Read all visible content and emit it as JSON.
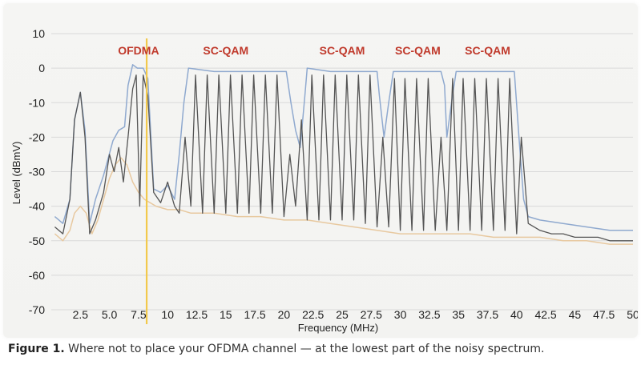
{
  "chart_data": {
    "type": "line",
    "title": "",
    "xlabel": "Frequency (MHz)",
    "ylabel": "Level (dBmV)",
    "xlim": [
      0,
      50
    ],
    "ylim": [
      -70,
      10
    ],
    "x_ticks": [
      2.5,
      5,
      7.5,
      10,
      12.5,
      15,
      17.5,
      20,
      22.5,
      25,
      27.5,
      30,
      32.5,
      35,
      37.5,
      40,
      42.5,
      45,
      47.5,
      50
    ],
    "x_tick_labels": [
      "2.5",
      "5.0",
      "7.5",
      "10",
      "12.5",
      "15",
      "17.5",
      "20",
      "22.5",
      "25",
      "27.5",
      "30",
      "32.5",
      "35",
      "37.5",
      "40",
      "42.5",
      "45",
      "47.5",
      "50"
    ],
    "y_ticks": [
      10,
      0,
      -10,
      -20,
      -30,
      -40,
      -50,
      -60,
      -70
    ],
    "y_tick_labels": [
      "10",
      "0",
      "-10",
      "-20",
      "-30",
      "-40",
      "-50",
      "-60",
      "-70"
    ],
    "grid": true,
    "annotations": [
      {
        "label": "OFDMA",
        "x": 7.5,
        "color": "#c0392b"
      },
      {
        "label": "SC-QAM",
        "x": 15,
        "color": "#c0392b"
      },
      {
        "label": "SC-QAM",
        "x": 25,
        "color": "#c0392b"
      },
      {
        "label": "SC-QAM",
        "x": 31.5,
        "color": "#c0392b"
      },
      {
        "label": "SC-QAM",
        "x": 37.5,
        "color": "#c0392b"
      }
    ],
    "marker_line": {
      "x": 8.2,
      "color": "#f2c94c"
    },
    "series": [
      {
        "color": "#8fa9cf",
        "x": [
          0.3,
          1.0,
          1.6,
          2.0,
          2.5,
          2.9,
          3.3,
          3.8,
          4.5,
          5.3,
          5.8,
          6.3,
          6.6,
          7.0,
          7.4,
          7.9,
          8.3,
          8.8,
          9.4,
          10.0,
          10.6,
          11.0,
          11.4,
          11.8,
          14.0,
          17.0,
          19.5,
          20.2,
          20.6,
          21.0,
          21.4,
          21.8,
          22.0,
          24.0,
          26.0,
          28.0,
          28.2,
          28.6,
          29.0,
          29.4,
          30.0,
          32.0,
          33.5,
          33.8,
          34.0,
          34.4,
          34.8,
          35.0,
          37.0,
          39.8,
          40.2,
          40.6,
          41.0,
          42.0,
          44.0,
          46.0,
          48.0,
          50.0
        ],
        "y": [
          -43,
          -45,
          -38,
          -15,
          -7,
          -18,
          -45,
          -38,
          -31,
          -21,
          -18,
          -17,
          -5,
          1,
          0,
          0,
          -3,
          -35,
          -36,
          -34,
          -38,
          -25,
          -10,
          0,
          -1,
          -1,
          -1,
          -1,
          -10,
          -18,
          -23,
          -8,
          0,
          -1,
          -1,
          -1,
          -8,
          -20,
          -10,
          -1,
          -1,
          -1,
          -1,
          -5,
          -20,
          -10,
          -1,
          -1,
          -1,
          -1,
          -20,
          -38,
          -43,
          -44,
          -45,
          -46,
          -47,
          -47
        ]
      },
      {
        "color": "#555555",
        "x": [
          0.3,
          1.0,
          1.6,
          2.0,
          2.5,
          2.9,
          3.3,
          3.8,
          4.5,
          5.0,
          5.4,
          5.8,
          6.2,
          6.6,
          7.0,
          7.3,
          7.6,
          7.9,
          8.3,
          8.8,
          9.4,
          10.0,
          10.6,
          11.0,
          11.5,
          12.0,
          12.4,
          13.0,
          13.4,
          14.0,
          14.4,
          15.0,
          15.4,
          16.0,
          16.4,
          17.0,
          17.4,
          18.0,
          18.4,
          19.0,
          19.4,
          20.0,
          20.5,
          21.0,
          21.5,
          22.0,
          22.4,
          23.0,
          23.4,
          24.0,
          24.4,
          25.0,
          25.4,
          26.0,
          26.4,
          27.0,
          27.4,
          28.0,
          28.5,
          29.0,
          29.5,
          30.0,
          30.4,
          31.0,
          31.4,
          32.0,
          32.4,
          33.0,
          33.5,
          34.0,
          34.5,
          35.0,
          35.4,
          36.0,
          36.4,
          37.0,
          37.4,
          38.0,
          38.4,
          39.0,
          39.4,
          40.0,
          40.4,
          41.0,
          42.0,
          43.0,
          44.0,
          45.0,
          46.0,
          47.0,
          48.0,
          49.0,
          50.0
        ],
        "y": [
          -46,
          -48,
          -38,
          -15,
          -7,
          -20,
          -48,
          -44,
          -36,
          -25,
          -30,
          -23,
          -33,
          -20,
          -6,
          -2,
          -40,
          -2,
          -8,
          -36,
          -39,
          -33,
          -40,
          -42,
          -20,
          -40,
          -2,
          -42,
          -2,
          -42,
          -2,
          -42,
          -2,
          -42,
          -2,
          -42,
          -2,
          -42,
          -2,
          -42,
          -2,
          -43,
          -25,
          -40,
          -15,
          -44,
          -2,
          -44,
          -2,
          -44,
          -2,
          -44,
          -2,
          -44,
          -2,
          -45,
          -2,
          -46,
          -20,
          -46,
          -3,
          -47,
          -3,
          -47,
          -3,
          -47,
          -3,
          -47,
          -20,
          -47,
          -3,
          -47,
          -3,
          -47,
          -3,
          -47,
          -3,
          -47,
          -3,
          -47,
          -3,
          -48,
          -20,
          -45,
          -47,
          -48,
          -48,
          -49,
          -49,
          -49,
          -50,
          -50,
          -50
        ]
      },
      {
        "color": "#e8c9a0",
        "x": [
          0.3,
          1.0,
          1.6,
          2.0,
          2.5,
          3.0,
          3.5,
          4.0,
          4.5,
          5.0,
          5.5,
          6.0,
          6.5,
          7.0,
          7.5,
          8.0,
          8.5,
          9.0,
          10.0,
          11.0,
          12.0,
          14.0,
          16.0,
          18.0,
          20.0,
          22.0,
          24.0,
          26.0,
          28.0,
          30.0,
          32.0,
          34.0,
          36.0,
          38.0,
          40.0,
          42.0,
          44.0,
          46.0,
          48.0,
          50.0
        ],
        "y": [
          -48,
          -50,
          -47,
          -42,
          -40,
          -42,
          -48,
          -44,
          -38,
          -32,
          -28,
          -26,
          -28,
          -33,
          -36,
          -38,
          -39,
          -40,
          -41,
          -41,
          -42,
          -42,
          -43,
          -43,
          -44,
          -44,
          -45,
          -46,
          -47,
          -48,
          -48,
          -48,
          -48,
          -49,
          -49,
          -49,
          -50,
          -50,
          -51,
          -51
        ]
      }
    ]
  },
  "caption": {
    "label": "Figure 1.",
    "text": " Where not to place your OFDMA channel — at the lowest part of the noisy spectrum."
  }
}
